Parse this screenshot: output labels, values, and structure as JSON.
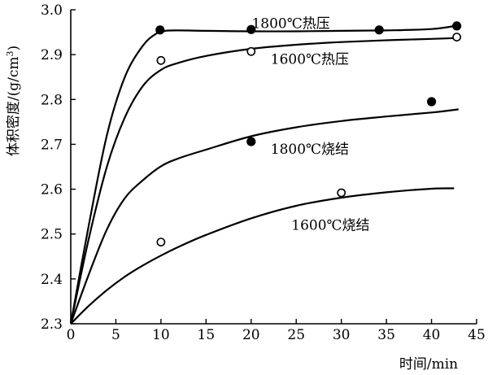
{
  "chart_data": {
    "type": "scatter",
    "title": "",
    "xlabel": "时间/min",
    "ylabel_prefix": "体积密度/(g/cm",
    "ylabel_sup": "3",
    "ylabel_suffix": ")",
    "xlim": [
      0,
      45
    ],
    "ylim": [
      2.3,
      3.0
    ],
    "xticks": [
      0,
      5,
      10,
      15,
      20,
      25,
      30,
      35,
      40,
      45
    ],
    "yticks": [
      2.3,
      2.4,
      2.5,
      2.6,
      2.7,
      2.8,
      2.9,
      3.0
    ],
    "grid": false,
    "legend": "none",
    "series": [
      {
        "name": "1800℃热压",
        "marker": "filled",
        "points": [
          [
            9.9,
            2.955
          ],
          [
            20.0,
            2.956
          ],
          [
            34.2,
            2.955
          ],
          [
            42.8,
            2.964
          ]
        ],
        "curve": [
          [
            0,
            2.3
          ],
          [
            2,
            2.52
          ],
          [
            4,
            2.72
          ],
          [
            6,
            2.85
          ],
          [
            8,
            2.92
          ],
          [
            9.5,
            2.947
          ],
          [
            10.5,
            2.953
          ],
          [
            12,
            2.954
          ],
          [
            15,
            2.953
          ],
          [
            20,
            2.952
          ],
          [
            25,
            2.952
          ],
          [
            30,
            2.953
          ],
          [
            35,
            2.954
          ],
          [
            40,
            2.957
          ],
          [
            43,
            2.965
          ]
        ]
      },
      {
        "name": "1600℃热压",
        "marker": "open",
        "points": [
          [
            10.0,
            2.887
          ],
          [
            20.0,
            2.907
          ],
          [
            42.8,
            2.939
          ]
        ],
        "curve": [
          [
            0,
            2.3
          ],
          [
            2,
            2.49
          ],
          [
            4,
            2.65
          ],
          [
            6,
            2.76
          ],
          [
            8,
            2.83
          ],
          [
            10,
            2.866
          ],
          [
            12,
            2.882
          ],
          [
            15,
            2.897
          ],
          [
            20,
            2.913
          ],
          [
            25,
            2.922
          ],
          [
            30,
            2.928
          ],
          [
            35,
            2.932
          ],
          [
            40,
            2.935
          ],
          [
            43,
            2.937
          ]
        ]
      },
      {
        "name": "1800℃烧结",
        "marker": "filled",
        "points": [
          [
            20.0,
            2.706
          ],
          [
            40.0,
            2.795
          ]
        ],
        "curve": [
          [
            0,
            2.3
          ],
          [
            2,
            2.41
          ],
          [
            4,
            2.51
          ],
          [
            6,
            2.58
          ],
          [
            8,
            2.62
          ],
          [
            10,
            2.651
          ],
          [
            12,
            2.669
          ],
          [
            15,
            2.688
          ],
          [
            20,
            2.718
          ],
          [
            25,
            2.738
          ],
          [
            30,
            2.752
          ],
          [
            35,
            2.762
          ],
          [
            40,
            2.771
          ],
          [
            43,
            2.778
          ]
        ]
      },
      {
        "name": "1600℃烧结",
        "marker": "open",
        "points": [
          [
            10.0,
            2.482
          ],
          [
            30.0,
            2.592
          ]
        ],
        "curve": [
          [
            0,
            2.3
          ],
          [
            2,
            2.34
          ],
          [
            4,
            2.375
          ],
          [
            6,
            2.405
          ],
          [
            8,
            2.43
          ],
          [
            10,
            2.452
          ],
          [
            12,
            2.472
          ],
          [
            15,
            2.498
          ],
          [
            20,
            2.535
          ],
          [
            25,
            2.563
          ],
          [
            30,
            2.581
          ],
          [
            35,
            2.593
          ],
          [
            40,
            2.601
          ],
          [
            42.5,
            2.602
          ]
        ]
      }
    ],
    "annotations": [
      {
        "text": "1800℃热压",
        "x": 24.4,
        "y": 2.97,
        "series": 0
      },
      {
        "text": "1600℃热压",
        "x": 26.5,
        "y": 2.89,
        "series": 1
      },
      {
        "text": "1800℃烧结",
        "x": 26.5,
        "y": 2.69,
        "series": 2
      },
      {
        "text": "1600℃烧结",
        "x": 28.8,
        "y": 2.52,
        "series": 3
      }
    ]
  }
}
